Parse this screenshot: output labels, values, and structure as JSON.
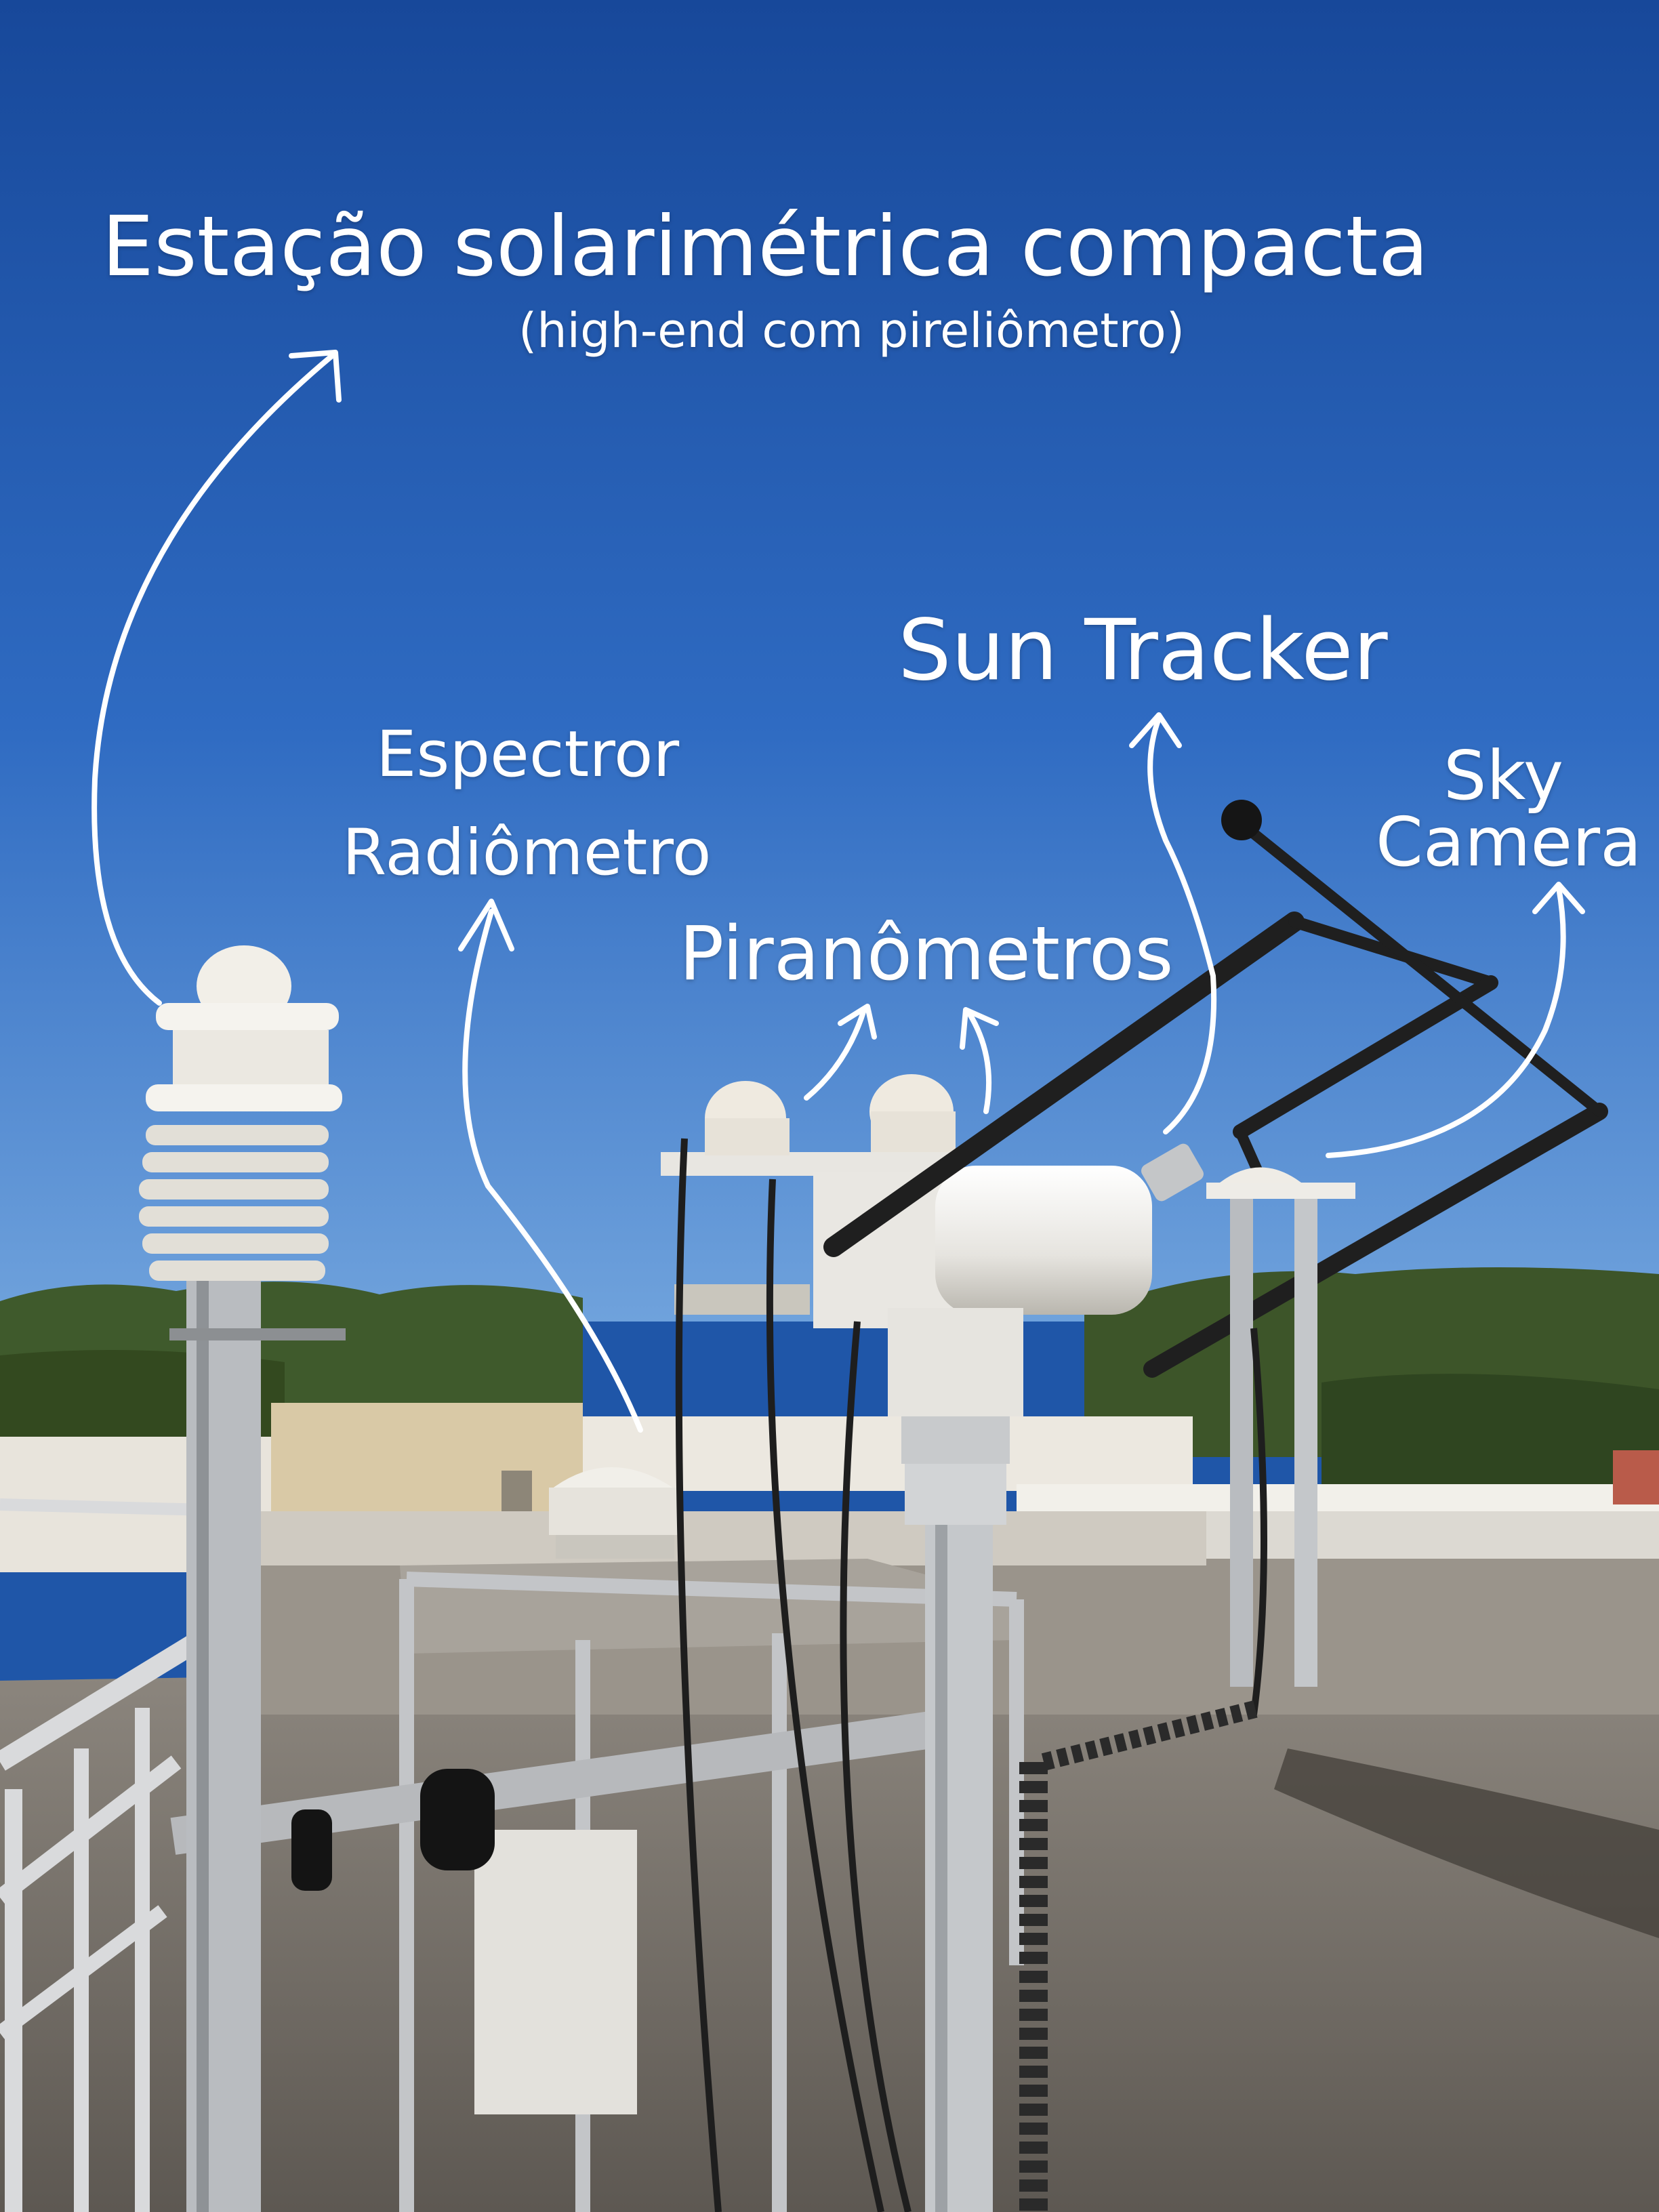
{
  "labels": {
    "title": "Estação solarimétrica compacta",
    "subtitle": "(high-end com pireliômetro)",
    "sun_tracker": "Sun Tracker",
    "espectror": "Espectror",
    "radiometro": "Radiômetro",
    "piranometros": "Piranômetros",
    "sky": "Sky",
    "camera": "Camera"
  },
  "colors": {
    "sky_top": "#1a4e9e",
    "sky_bottom": "#4b8ad6",
    "annotation": "#ffffff",
    "equipment": "#e8e6e1",
    "mast": "#b9bcc0",
    "roof": "#7a746c",
    "trees": "#3f5a2c",
    "tracker_arm": "#202020"
  }
}
